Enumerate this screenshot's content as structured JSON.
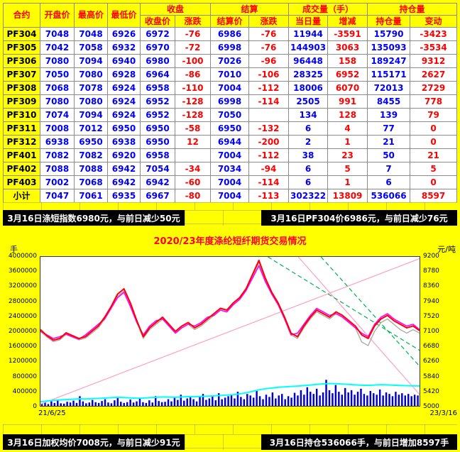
{
  "table": {
    "headers": {
      "contract": "合约",
      "open": "开盘价",
      "high": "最高价",
      "low": "最低价",
      "close_group": "收盘",
      "settle_group": "结算",
      "volume_group": "成交量（手）",
      "oi_group": "持仓量",
      "close": "收盘价",
      "close_chg": "涨跌",
      "settle": "结算价",
      "settle_chg": "涨跌",
      "day_volume": "当日量",
      "vol_chg": "增减",
      "oi": "持仓量",
      "oi_chg": "变动"
    },
    "rows": [
      [
        "PF304",
        "7048",
        "7048",
        "6926",
        "6972",
        "-76",
        "6986",
        "-76",
        "11944",
        "-3591",
        "15790",
        "-3423"
      ],
      [
        "PF305",
        "7042",
        "7058",
        "6932",
        "6970",
        "-72",
        "6998",
        "-76",
        "144903",
        "3063",
        "135093",
        "-3534"
      ],
      [
        "PF306",
        "7080",
        "7094",
        "6940",
        "6980",
        "-100",
        "7026",
        "-96",
        "96448",
        "158",
        "189247",
        "9312"
      ],
      [
        "PF307",
        "7050",
        "7080",
        "6928",
        "6964",
        "-86",
        "7010",
        "-106",
        "28325",
        "6952",
        "115171",
        "2627"
      ],
      [
        "PF308",
        "7068",
        "7078",
        "6924",
        "6958",
        "-110",
        "7004",
        "-112",
        "18006",
        "6070",
        "72013",
        "2729"
      ],
      [
        "PF309",
        "7080",
        "7080",
        "6924",
        "6952",
        "-128",
        "6998",
        "-114",
        "2505",
        "991",
        "8455",
        "778"
      ],
      [
        "PF310",
        "7074",
        "7094",
        "6924",
        "6952",
        "-128",
        "7050",
        "",
        "134",
        "128",
        "139",
        "79"
      ],
      [
        "PF311",
        "7008",
        "7012",
        "6950",
        "6950",
        "-58",
        "6950",
        "-132",
        "6",
        "4",
        "77",
        "0"
      ],
      [
        "PF312",
        "6938",
        "6950",
        "6938",
        "6950",
        "12",
        "6944",
        "-200",
        "2",
        "1",
        "21",
        "0"
      ],
      [
        "PF401",
        "7082",
        "7082",
        "6920",
        "6958",
        "",
        "7004",
        "-112",
        "38",
        "23",
        "50",
        "21"
      ],
      [
        "PF402",
        "7088",
        "7088",
        "6942",
        "7054",
        "-34",
        "7034",
        "-94",
        "6",
        "5",
        "7",
        "5"
      ],
      [
        "PF403",
        "7002",
        "7068",
        "6942",
        "6942",
        "-60",
        "7004",
        "-114",
        "6",
        "1",
        "6",
        "0"
      ],
      [
        "小计",
        "7047",
        "7061",
        "6935",
        "6967",
        "-80",
        "7004",
        "-113",
        "302322",
        "13809",
        "536066",
        "8597"
      ]
    ]
  },
  "info_bars": {
    "top_left": "3月16日涤短指数6980元，与前日减少50元",
    "top_right": "3月16日PF304价6986元，与前日减少76元",
    "bottom_left": "3月16日加权均价7008元，与前日减少91元",
    "bottom_right": "3月16日持仓536066手，与前日增加8597手"
  },
  "chart_data": {
    "type": "line",
    "title": "2020/23年度涤纶短纤期货交易情况",
    "x_start_label": "21/6/25",
    "x_end_label": "23/3/16",
    "left_axis": {
      "unit": "手",
      "min": 0,
      "max": 4000000,
      "ticks": [
        0,
        400000,
        800000,
        1200000,
        1600000,
        2000000,
        2400000,
        2800000,
        3200000,
        3600000,
        4000000
      ]
    },
    "right_axis": {
      "unit": "元/吨",
      "min": 5000,
      "max": 9200,
      "ticks": [
        5000,
        5420,
        5840,
        6260,
        6680,
        7100,
        7520,
        7940,
        8360,
        8780,
        9200
      ]
    },
    "volume_bars": {
      "name": "volume-bars",
      "color": "#0000cd",
      "axis": "left",
      "values": [
        60000,
        90000,
        50000,
        120000,
        80000,
        150000,
        70000,
        60000,
        110000,
        90000,
        140000,
        80000,
        260000,
        120000,
        70000,
        90000,
        160000,
        100000,
        80000,
        130000,
        180000,
        90000,
        70000,
        150000,
        240000,
        110000,
        80000,
        100000,
        170000,
        90000,
        120000,
        200000,
        100000,
        80000,
        150000,
        90000,
        260000,
        130000,
        100000,
        110000,
        180000,
        120000,
        220000,
        160000,
        300000,
        140000,
        200000,
        260000,
        180000,
        120000,
        240000,
        320000,
        160000,
        200000,
        280000,
        150000,
        340000,
        180000,
        220000,
        260000,
        300000,
        200000,
        380000,
        240000,
        180000,
        320000,
        280000,
        220000,
        400000,
        260000,
        180000,
        300000,
        240000,
        360000,
        200000,
        280000,
        320000,
        180000,
        260000,
        220000,
        350000,
        280000,
        420000,
        300000,
        500000,
        380000,
        320000,
        460000,
        280000,
        360000,
        700000,
        420000,
        340000,
        560000,
        380000,
        300000,
        480000,
        360000,
        420000,
        300000,
        380000,
        460000,
        320000,
        280000,
        400000,
        340000,
        300000,
        440000,
        280000,
        360000,
        320000,
        260000,
        380000,
        300000,
        340000,
        280000,
        320000,
        260000,
        300000,
        280000
      ]
    },
    "series": [
      {
        "name": "gray-line",
        "color": "#a6a6a6",
        "axis": "right",
        "values": [
          7100,
          6940,
          6810,
          6860,
          7010,
          6930,
          6860,
          6910,
          7050,
          7200,
          7440,
          7740,
          8090,
          8240,
          7840,
          7350,
          6900,
          7150,
          7300,
          7440,
          7250,
          7050,
          7200,
          7300,
          7150,
          7250,
          7400,
          7550,
          7700,
          7640,
          7840,
          8000,
          8240,
          8640,
          9040,
          8540,
          8140,
          7840,
          7440,
          7000,
          6900,
          7200,
          7450,
          7650,
          7550,
          7450,
          7600,
          7500,
          7350,
          7200,
          6800,
          6700,
          7100,
          7350,
          7450,
          7300,
          7150,
          7050,
          7150,
          7050
        ]
      },
      {
        "name": "cyan-line",
        "color": "#00ffff",
        "axis": "left",
        "values": [
          110000,
          130000,
          150000,
          160000,
          170000,
          180000,
          190000,
          185000,
          195000,
          200000,
          210000,
          220000,
          230000,
          225000,
          215000,
          205000,
          210000,
          220000,
          230000,
          240000,
          235000,
          230000,
          240000,
          250000,
          245000,
          255000,
          260000,
          270000,
          280000,
          290000,
          300000,
          320000,
          350000,
          390000,
          430000,
          460000,
          480000,
          500000,
          510000,
          520000,
          530000,
          545000,
          560000,
          575000,
          590000,
          600000,
          595000,
          585000,
          575000,
          565000,
          555000,
          550000,
          560000,
          570000,
          565000,
          555000,
          548000,
          542000,
          538000,
          536066
        ]
      },
      {
        "name": "magenta-line",
        "color": "#ff00ff",
        "axis": "right",
        "values": [
          7100,
          7000,
          6900,
          6950,
          7020,
          6950,
          6880,
          7000,
          7150,
          7300,
          7450,
          7750,
          8050,
          8200,
          7800,
          7350,
          7000,
          7250,
          7400,
          7450,
          7250,
          7050,
          7200,
          7300,
          7250,
          7350,
          7500,
          7550,
          7700,
          7650,
          7850,
          8000,
          8250,
          8600,
          8950,
          8500,
          8150,
          7850,
          7450,
          7000,
          7050,
          7300,
          7550,
          7750,
          7650,
          7550,
          7600,
          7500,
          7350,
          7200,
          7050,
          6950,
          7300,
          7500,
          7600,
          7450,
          7350,
          7250,
          7300,
          7150
        ]
      },
      {
        "name": "red-line",
        "color": "#ff0000",
        "axis": "right",
        "values": [
          7150,
          6980,
          6850,
          6900,
          7060,
          6980,
          6900,
          6950,
          7100,
          7250,
          7500,
          7800,
          8150,
          8300,
          7900,
          7400,
          6950,
          7200,
          7350,
          7500,
          7300,
          7100,
          7250,
          7350,
          7200,
          7300,
          7450,
          7600,
          7750,
          7700,
          7900,
          8050,
          8300,
          8700,
          9100,
          8600,
          8200,
          7900,
          7500,
          7050,
          6950,
          7250,
          7500,
          7700,
          7600,
          7500,
          7650,
          7550,
          7400,
          7250,
          7000,
          6900,
          7250,
          7450,
          7550,
          7400,
          7300,
          7200,
          7250,
          7120
        ]
      }
    ],
    "trendlines": [
      {
        "name": "ascending-pink",
        "color": "#ff9ec6",
        "dash": "none",
        "from": [
          0.0,
          5050
        ],
        "to": [
          1.0,
          9150
        ]
      },
      {
        "name": "descending-pink",
        "color": "#ff9ec6",
        "dash": "none",
        "from": [
          0.68,
          9200
        ],
        "to": [
          1.01,
          5200
        ]
      },
      {
        "name": "green-dashed-1",
        "color": "#00b050",
        "dash": "6,4",
        "from": [
          0.6,
          9200
        ],
        "to": [
          1.01,
          6500
        ]
      },
      {
        "name": "green-dashed-2",
        "color": "#00b050",
        "dash": "6,4",
        "from": [
          0.74,
          9200
        ],
        "to": [
          1.01,
          6000
        ]
      }
    ],
    "colors": {
      "title": "#ff0033",
      "plot_border": "#333333",
      "volume": "#0000cd"
    }
  }
}
